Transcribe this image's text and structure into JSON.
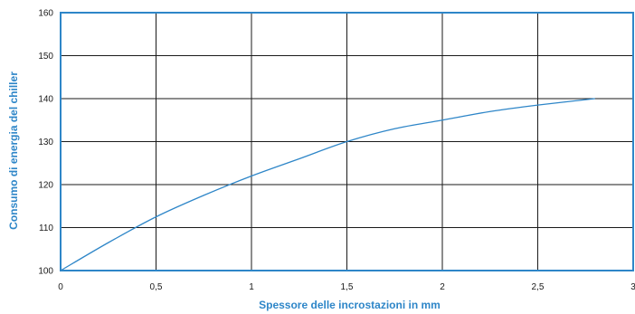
{
  "chart_data": {
    "type": "line",
    "title": "",
    "xlabel": "Spessore delle incrostazioni in mm",
    "ylabel": "Consumo di energia del chiller",
    "xlim": [
      0,
      3
    ],
    "ylim": [
      100,
      160
    ],
    "x_ticks": [
      0,
      0.5,
      1,
      1.5,
      2,
      2.5,
      3
    ],
    "x_tick_labels": [
      "0",
      "0,5",
      "1",
      "1,5",
      "2",
      "2,5",
      "3"
    ],
    "y_ticks": [
      100,
      110,
      120,
      130,
      140,
      150,
      160
    ],
    "y_tick_labels": [
      "100",
      "110",
      "120",
      "130",
      "140",
      "150",
      "160"
    ],
    "grid": true,
    "series": [
      {
        "x": [
          0,
          0.25,
          0.5,
          0.75,
          1.0,
          1.25,
          1.5,
          1.75,
          2.0,
          2.25,
          2.5,
          2.8
        ],
        "y": [
          100,
          106.5,
          112.5,
          117.5,
          122,
          126,
          130,
          133,
          135,
          137,
          138.5,
          140
        ]
      }
    ],
    "colors": {
      "line": "#2e86c8",
      "frame": "#2e86c8",
      "grid": "#1a1a1a",
      "axis_title": "#2e86c8"
    }
  }
}
